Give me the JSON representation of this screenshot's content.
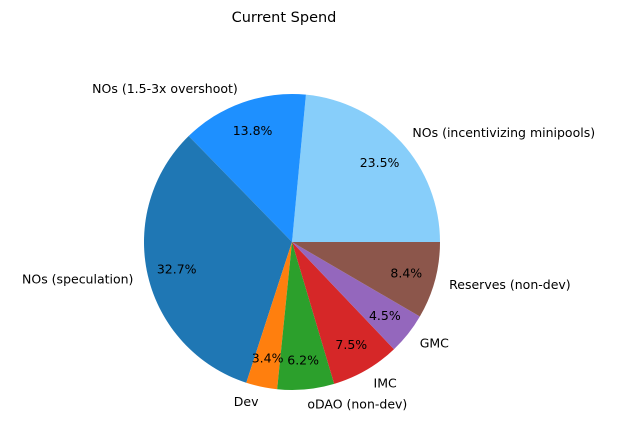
{
  "chart_data": {
    "type": "pie",
    "title": "Current Spend",
    "start_angle_deg": 0,
    "direction": "counterclockwise",
    "slices": [
      {
        "label": "NOs (incentivizing minipools)",
        "value": 23.5,
        "pct_label": "23.5%",
        "color": "#87CEFA"
      },
      {
        "label": "NOs (1.5-3x overshoot)",
        "value": 13.8,
        "pct_label": "13.8%",
        "color": "#1E90FF"
      },
      {
        "label": "NOs (speculation)",
        "value": 32.7,
        "pct_label": "32.7%",
        "color": "#1F77B4"
      },
      {
        "label": "Dev",
        "value": 3.4,
        "pct_label": "3.4%",
        "color": "#FF7F0E"
      },
      {
        "label": "oDAO (non-dev)",
        "value": 6.2,
        "pct_label": "6.2%",
        "color": "#2CA02C"
      },
      {
        "label": "IMC",
        "value": 7.5,
        "pct_label": "7.5%",
        "color": "#D62728"
      },
      {
        "label": "GMC",
        "value": 4.5,
        "pct_label": "4.5%",
        "color": "#9467BD"
      },
      {
        "label": "Reserves (non-dev)",
        "value": 8.4,
        "pct_label": "8.4%",
        "color": "#8C564B"
      }
    ]
  }
}
